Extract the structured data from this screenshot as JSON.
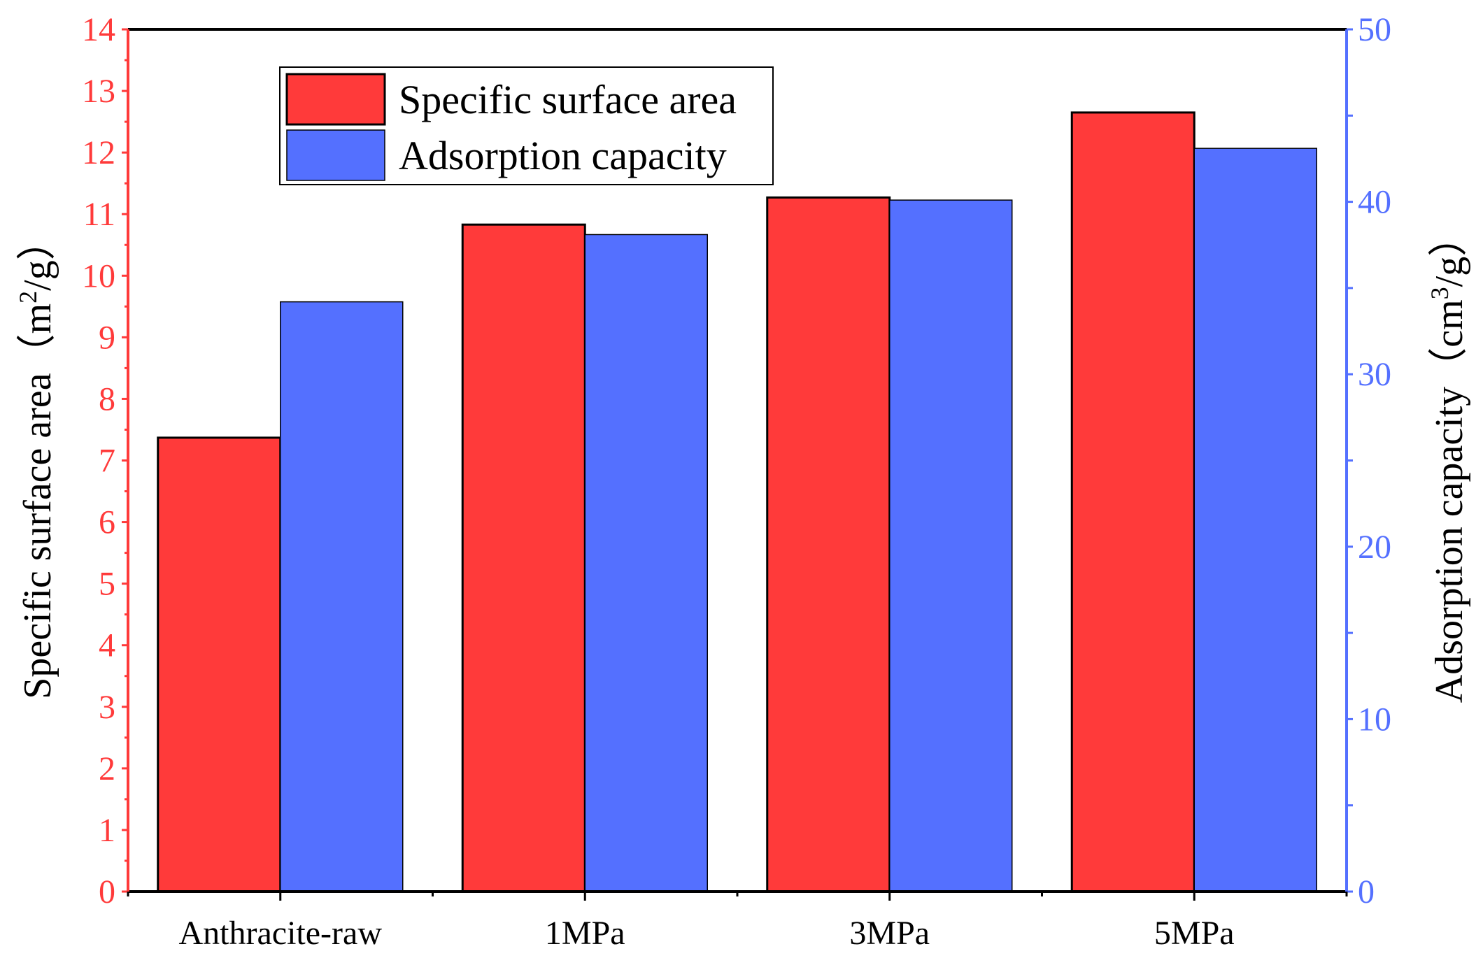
{
  "chart_data": {
    "type": "bar",
    "title": "",
    "categories": [
      "Anthracite-raw",
      "1MPa",
      "3MPa",
      "5MPa"
    ],
    "series": [
      {
        "name": "Specific surface area",
        "axis": "left",
        "color": "#ff3a3a",
        "values": [
          7.37,
          10.83,
          11.27,
          12.65
        ]
      },
      {
        "name": "Adsorption capacity",
        "axis": "right",
        "color": "#5470ff",
        "values": [
          34.2,
          38.1,
          40.1,
          43.1
        ]
      }
    ],
    "left_axis": {
      "label": "Specific surface area（m²/g）",
      "label_main": "Specific surface area（m",
      "label_sup": "2",
      "label_end": "/g）",
      "range": [
        0,
        14
      ],
      "ticks": [
        "0",
        "1",
        "2",
        "3",
        "4",
        "5",
        "6",
        "7",
        "8",
        "9",
        "10",
        "11",
        "12",
        "13",
        "14"
      ],
      "color": "#ff3a3a"
    },
    "right_axis": {
      "label": "Adsorption capacity（cm³/g）",
      "label_main": "Adsorption capacity（cm",
      "label_sup": "3",
      "label_end": "/g）",
      "range": [
        0,
        50
      ],
      "ticks": [
        "0",
        "10",
        "20",
        "30",
        "40",
        "50"
      ],
      "color": "#5470ff"
    },
    "legend": {
      "position": "top-left",
      "entries": [
        "Specific surface area",
        "Adsorption capacity"
      ]
    },
    "grid": false
  }
}
